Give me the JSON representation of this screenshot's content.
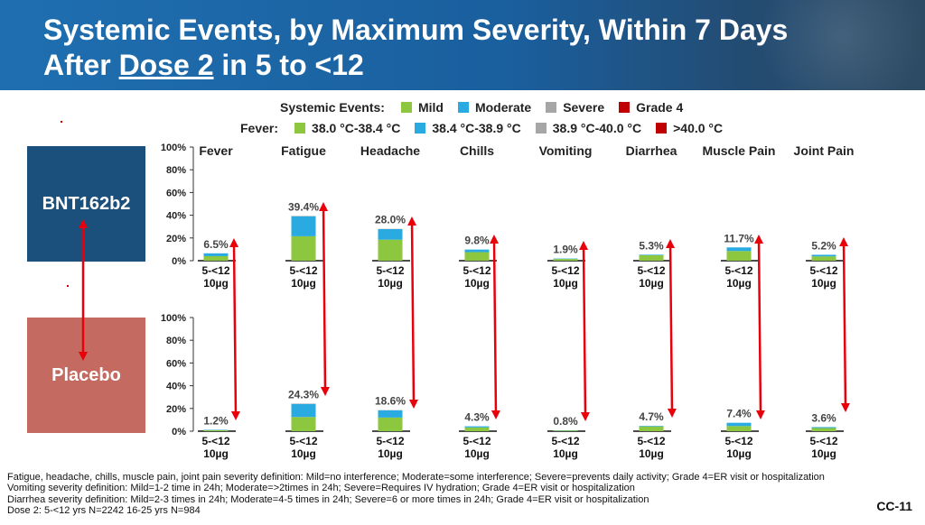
{
  "title": {
    "line1": "Systemic Events, by Maximum Severity, Within 7 Days",
    "line2_prefix": "After ",
    "line2_underlined": "Dose 2",
    "line2_suffix": " in 5 to <12"
  },
  "legend_systemic": {
    "label": "Systemic Events:",
    "items": [
      {
        "label": "Mild",
        "color": "#8dc63f"
      },
      {
        "label": "Moderate",
        "color": "#29abe2"
      },
      {
        "label": "Severe",
        "color": "#a6a6a6"
      },
      {
        "label": "Grade 4",
        "color": "#c00000"
      }
    ]
  },
  "legend_fever": {
    "label": "Fever:",
    "items": [
      {
        "label": "38.0 °C-38.4 °C",
        "color": "#8dc63f"
      },
      {
        "label": "38.4 °C-38.9 °C",
        "color": "#29abe2"
      },
      {
        "label": "38.9 °C-40.0 °C",
        "color": "#a6a6a6"
      },
      {
        "label": ">40.0 °C",
        "color": "#c00000"
      }
    ]
  },
  "groups": {
    "vaccine": "BNT162b2",
    "placebo": "Placebo"
  },
  "colors": {
    "vaccine_box": "#1b4f7c",
    "placebo_box": "#c46a60",
    "arrow": "#e8000b"
  },
  "chart_data": {
    "type": "bar",
    "stacked": true,
    "categories": [
      "Fever",
      "Fatigue",
      "Headache",
      "Chills",
      "Vomiting",
      "Diarrhea",
      "Muscle Pain",
      "Joint Pain"
    ],
    "tick_label_line1": "5-<12",
    "tick_label_line2": "10µg",
    "y_ticks": [
      "100%",
      "80%",
      "60%",
      "40%",
      "20%",
      "0%"
    ],
    "ylim": [
      0,
      100
    ],
    "series_names": [
      "Mild",
      "Moderate",
      "Severe",
      "Grade 4"
    ],
    "panels": [
      {
        "group": "BNT162b2",
        "totals": [
          "6.5%",
          "39.4%",
          "28.0%",
          "9.8%",
          "1.9%",
          "5.3%",
          "11.7%",
          "5.2%"
        ],
        "mild": [
          4.0,
          21.5,
          18.5,
          7.5,
          1.5,
          4.8,
          8.5,
          3.8
        ],
        "moderate": [
          2.5,
          17.6,
          9.3,
          2.3,
          0.4,
          0.5,
          3.2,
          1.4
        ],
        "severe": [
          0,
          0.3,
          0.2,
          0,
          0,
          0,
          0,
          0
        ],
        "grade4": [
          0,
          0,
          0,
          0,
          0,
          0,
          0,
          0
        ]
      },
      {
        "group": "Placebo",
        "totals": [
          "1.2%",
          "24.3%",
          "18.6%",
          "4.3%",
          "0.8%",
          "4.7%",
          "7.4%",
          "3.6%"
        ],
        "mild": [
          0.8,
          12.5,
          12.0,
          3.3,
          0.6,
          4.2,
          4.5,
          2.8
        ],
        "moderate": [
          0.4,
          11.5,
          6.4,
          1.0,
          0.2,
          0.5,
          2.9,
          0.8
        ],
        "severe": [
          0,
          0.3,
          0.2,
          0,
          0,
          0,
          0,
          0
        ],
        "grade4": [
          0,
          0,
          0,
          0,
          0,
          0,
          0,
          0
        ]
      }
    ]
  },
  "footnotes": [
    "Fatigue, headache, chills, muscle pain, joint pain severity definition: Mild=no interference; Moderate=some interference; Severe=prevents daily activity; Grade 4=ER visit or hospitalization",
    "Vomiting severity definition: Mild=1-2 time in 24h; Moderate=>2times in 24h; Severe=Requires IV hydration; Grade 4=ER visit or hospitalization",
    "Diarrhea severity definition: Mild=2-3 times in 24h; Moderate=4-5 times in 24h; Severe=6 or more times in 24h; Grade 4=ER visit or hospitalization",
    "Dose 2: 5-<12 yrs N=2242 16-25 yrs N=984"
  ],
  "slide_number": "CC-11"
}
